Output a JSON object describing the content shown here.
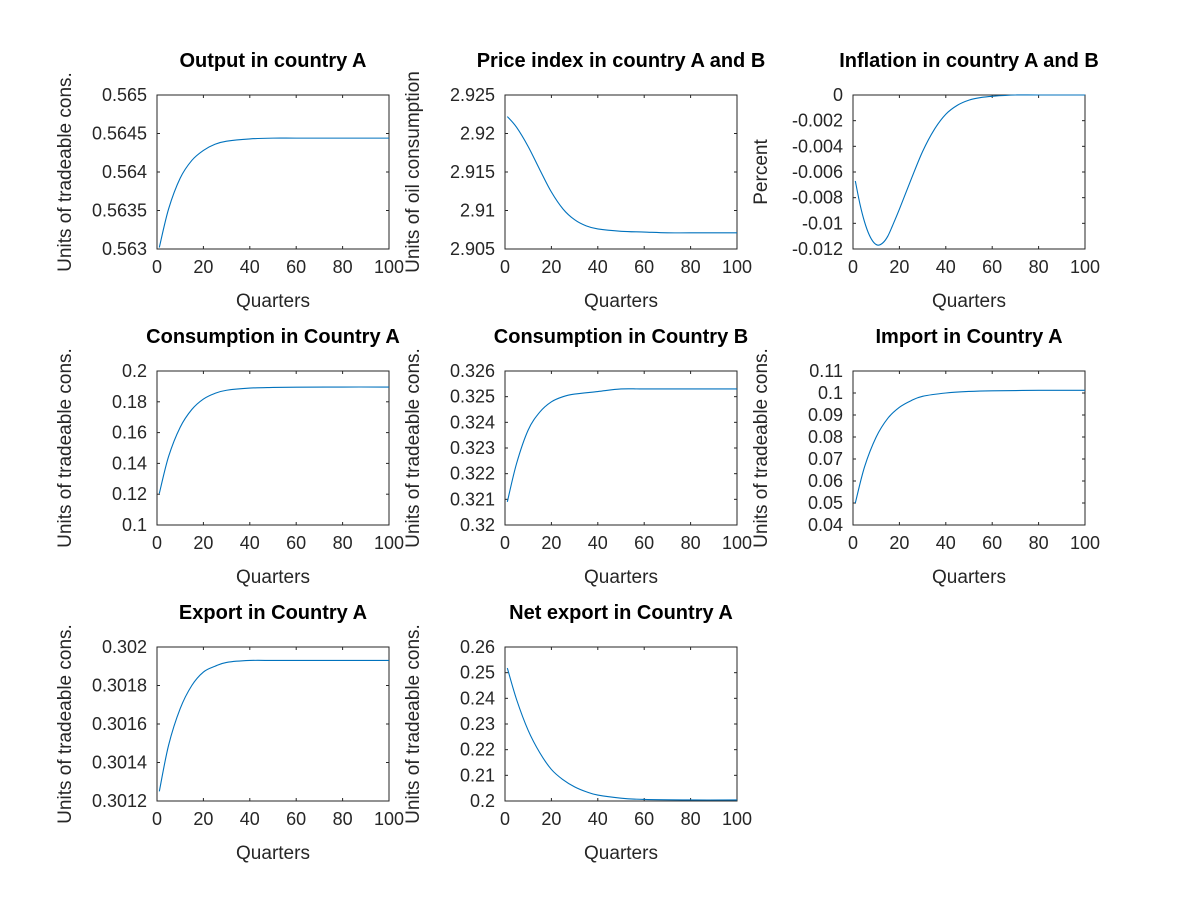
{
  "figure": {
    "background": "#ffffff",
    "line_color": "#0072BD"
  },
  "chart_data": [
    {
      "type": "line",
      "title": "Output in country A",
      "xlabel": "Quarters",
      "ylabel": "Units of tradeable cons.",
      "xlim": [
        0,
        100
      ],
      "ylim": [
        0.563,
        0.565
      ],
      "xticks": [
        0,
        20,
        40,
        60,
        80,
        100
      ],
      "xtick_labels": [
        "0",
        "20",
        "40",
        "60",
        "80",
        "100"
      ],
      "yticks": [
        0.563,
        0.5635,
        0.564,
        0.5645,
        0.565
      ],
      "ytick_labels": [
        "0.563",
        "0.5635",
        "0.564",
        "0.5645",
        "0.565"
      ],
      "grid": false,
      "series": [
        {
          "x": [
            1,
            5,
            10,
            15,
            20,
            25,
            30,
            40,
            50,
            60,
            80,
            100
          ],
          "y": [
            0.56302,
            0.56352,
            0.56392,
            0.56415,
            0.56428,
            0.56436,
            0.5644,
            0.56443,
            0.56444,
            0.56444,
            0.56444,
            0.56444
          ]
        }
      ]
    },
    {
      "type": "line",
      "title": "Price index in country A and B",
      "xlabel": "Quarters",
      "ylabel": "Units of oil consumption",
      "xlim": [
        0,
        100
      ],
      "ylim": [
        2.905,
        2.925
      ],
      "xticks": [
        0,
        20,
        40,
        60,
        80,
        100
      ],
      "xtick_labels": [
        "0",
        "20",
        "40",
        "60",
        "80",
        "100"
      ],
      "yticks": [
        2.905,
        2.91,
        2.915,
        2.92,
        2.925
      ],
      "ytick_labels": [
        "2.905",
        "2.91",
        "2.915",
        "2.92",
        "2.925"
      ],
      "grid": false,
      "series": [
        {
          "x": [
            1,
            5,
            10,
            15,
            20,
            25,
            30,
            35,
            40,
            50,
            60,
            70,
            80,
            100
          ],
          "y": [
            2.9222,
            2.9208,
            2.9183,
            2.9153,
            2.9124,
            2.9102,
            2.9088,
            2.908,
            2.9076,
            2.9073,
            2.9072,
            2.9071,
            2.9071,
            2.9071
          ]
        }
      ]
    },
    {
      "type": "line",
      "title": "Inflation in country A and B",
      "xlabel": "Quarters",
      "ylabel": "Percent",
      "xlim": [
        0,
        100
      ],
      "ylim": [
        -0.012,
        0
      ],
      "xticks": [
        0,
        20,
        40,
        60,
        80,
        100
      ],
      "xtick_labels": [
        "0",
        "20",
        "40",
        "60",
        "80",
        "100"
      ],
      "yticks": [
        -0.012,
        -0.01,
        -0.008,
        -0.006,
        -0.004,
        -0.002,
        0
      ],
      "ytick_labels": [
        "-0.012",
        "-0.01",
        "-0.008",
        "-0.006",
        "-0.004",
        "-0.002",
        "0"
      ],
      "grid": false,
      "series": [
        {
          "x": [
            1,
            3,
            5,
            7,
            9,
            11,
            13,
            15,
            17,
            20,
            25,
            30,
            35,
            40,
            45,
            50,
            55,
            60,
            70,
            80,
            100
          ],
          "y": [
            -0.0067,
            -0.0085,
            -0.0099,
            -0.0109,
            -0.0115,
            -0.0117,
            -0.0115,
            -0.011,
            -0.0102,
            -0.0089,
            -0.0066,
            -0.0044,
            -0.0027,
            -0.0015,
            -0.0008,
            -0.0004,
            -0.0002,
            -0.0001,
            0,
            0,
            0
          ]
        }
      ]
    },
    {
      "type": "line",
      "title": "Consumption in Country A",
      "xlabel": "Quarters",
      "ylabel": "Units of tradeable cons.",
      "xlim": [
        0,
        100
      ],
      "ylim": [
        0.1,
        0.2
      ],
      "xticks": [
        0,
        20,
        40,
        60,
        80,
        100
      ],
      "xtick_labels": [
        "0",
        "20",
        "40",
        "60",
        "80",
        "100"
      ],
      "yticks": [
        0.1,
        0.12,
        0.14,
        0.16,
        0.18,
        0.2
      ],
      "ytick_labels": [
        "0.1",
        "0.12",
        "0.14",
        "0.16",
        "0.18",
        "0.2"
      ],
      "grid": false,
      "series": [
        {
          "x": [
            1,
            5,
            10,
            15,
            20,
            25,
            30,
            40,
            50,
            60,
            80,
            100
          ],
          "y": [
            0.1205,
            0.1445,
            0.1635,
            0.175,
            0.1818,
            0.1855,
            0.1875,
            0.1889,
            0.1893,
            0.1895,
            0.1896,
            0.1896
          ]
        }
      ]
    },
    {
      "type": "line",
      "title": "Consumption in Country B",
      "xlabel": "Quarters",
      "ylabel": "Units of tradeable cons.",
      "xlim": [
        0,
        100
      ],
      "ylim": [
        0.32,
        0.326
      ],
      "xticks": [
        0,
        20,
        40,
        60,
        80,
        100
      ],
      "xtick_labels": [
        "0",
        "20",
        "40",
        "60",
        "80",
        "100"
      ],
      "yticks": [
        0.32,
        0.321,
        0.322,
        0.323,
        0.324,
        0.325,
        0.326
      ],
      "ytick_labels": [
        "0.32",
        "0.321",
        "0.322",
        "0.323",
        "0.324",
        "0.325",
        "0.326"
      ],
      "grid": false,
      "series": [
        {
          "x": [
            1,
            5,
            10,
            15,
            20,
            25,
            30,
            40,
            50,
            60,
            80,
            100
          ],
          "y": [
            0.3209,
            0.3224,
            0.3237,
            0.3244,
            0.3248,
            0.325,
            0.3251,
            0.3252,
            0.3253,
            0.3253,
            0.3253,
            0.3253
          ]
        }
      ]
    },
    {
      "type": "line",
      "title": "Import in Country A",
      "xlabel": "Quarters",
      "ylabel": "Units of tradeable cons.",
      "xlim": [
        0,
        100
      ],
      "ylim": [
        0.04,
        0.11
      ],
      "xticks": [
        0,
        20,
        40,
        60,
        80,
        100
      ],
      "xtick_labels": [
        "0",
        "20",
        "40",
        "60",
        "80",
        "100"
      ],
      "yticks": [
        0.04,
        0.05,
        0.06,
        0.07,
        0.08,
        0.09,
        0.1,
        0.11
      ],
      "ytick_labels": [
        "0.04",
        "0.05",
        "0.06",
        "0.07",
        "0.08",
        "0.09",
        "0.1",
        "0.11"
      ],
      "grid": false,
      "series": [
        {
          "x": [
            1,
            5,
            10,
            15,
            20,
            25,
            30,
            40,
            50,
            60,
            80,
            100
          ],
          "y": [
            0.05,
            0.0665,
            0.08,
            0.0885,
            0.0935,
            0.0965,
            0.0985,
            0.1,
            0.1007,
            0.101,
            0.1012,
            0.1012
          ]
        }
      ]
    },
    {
      "type": "line",
      "title": "Export in Country A",
      "xlabel": "Quarters",
      "ylabel": "Units of tradeable cons.",
      "xlim": [
        0,
        100
      ],
      "ylim": [
        0.3012,
        0.302
      ],
      "xticks": [
        0,
        20,
        40,
        60,
        80,
        100
      ],
      "xtick_labels": [
        "0",
        "20",
        "40",
        "60",
        "80",
        "100"
      ],
      "yticks": [
        0.3012,
        0.3014,
        0.3016,
        0.3018,
        0.302
      ],
      "ytick_labels": [
        "0.3012",
        "0.3014",
        "0.3016",
        "0.3018",
        "0.302"
      ],
      "grid": false,
      "series": [
        {
          "x": [
            1,
            5,
            10,
            15,
            20,
            25,
            30,
            40,
            50,
            60,
            80,
            100
          ],
          "y": [
            0.30125,
            0.30149,
            0.30168,
            0.3018,
            0.30187,
            0.3019,
            0.30192,
            0.30193,
            0.30193,
            0.30193,
            0.30193,
            0.30193
          ]
        }
      ]
    },
    {
      "type": "line",
      "title": "Net export in Country A",
      "xlabel": "Quarters",
      "ylabel": "Units of tradeable cons.",
      "xlim": [
        0,
        100
      ],
      "ylim": [
        0.2,
        0.26
      ],
      "xticks": [
        0,
        20,
        40,
        60,
        80,
        100
      ],
      "xtick_labels": [
        "0",
        "20",
        "40",
        "60",
        "80",
        "100"
      ],
      "yticks": [
        0.2,
        0.21,
        0.22,
        0.23,
        0.24,
        0.25,
        0.26
      ],
      "ytick_labels": [
        "0.2",
        "0.21",
        "0.22",
        "0.23",
        "0.24",
        "0.25",
        "0.26"
      ],
      "grid": false,
      "series": [
        {
          "x": [
            1,
            5,
            10,
            15,
            20,
            25,
            30,
            35,
            40,
            50,
            60,
            80,
            100
          ],
          "y": [
            0.2518,
            0.2395,
            0.2275,
            0.2188,
            0.2123,
            0.2083,
            0.2055,
            0.2036,
            0.2023,
            0.2011,
            0.2006,
            0.2004,
            0.2004
          ]
        }
      ]
    }
  ]
}
